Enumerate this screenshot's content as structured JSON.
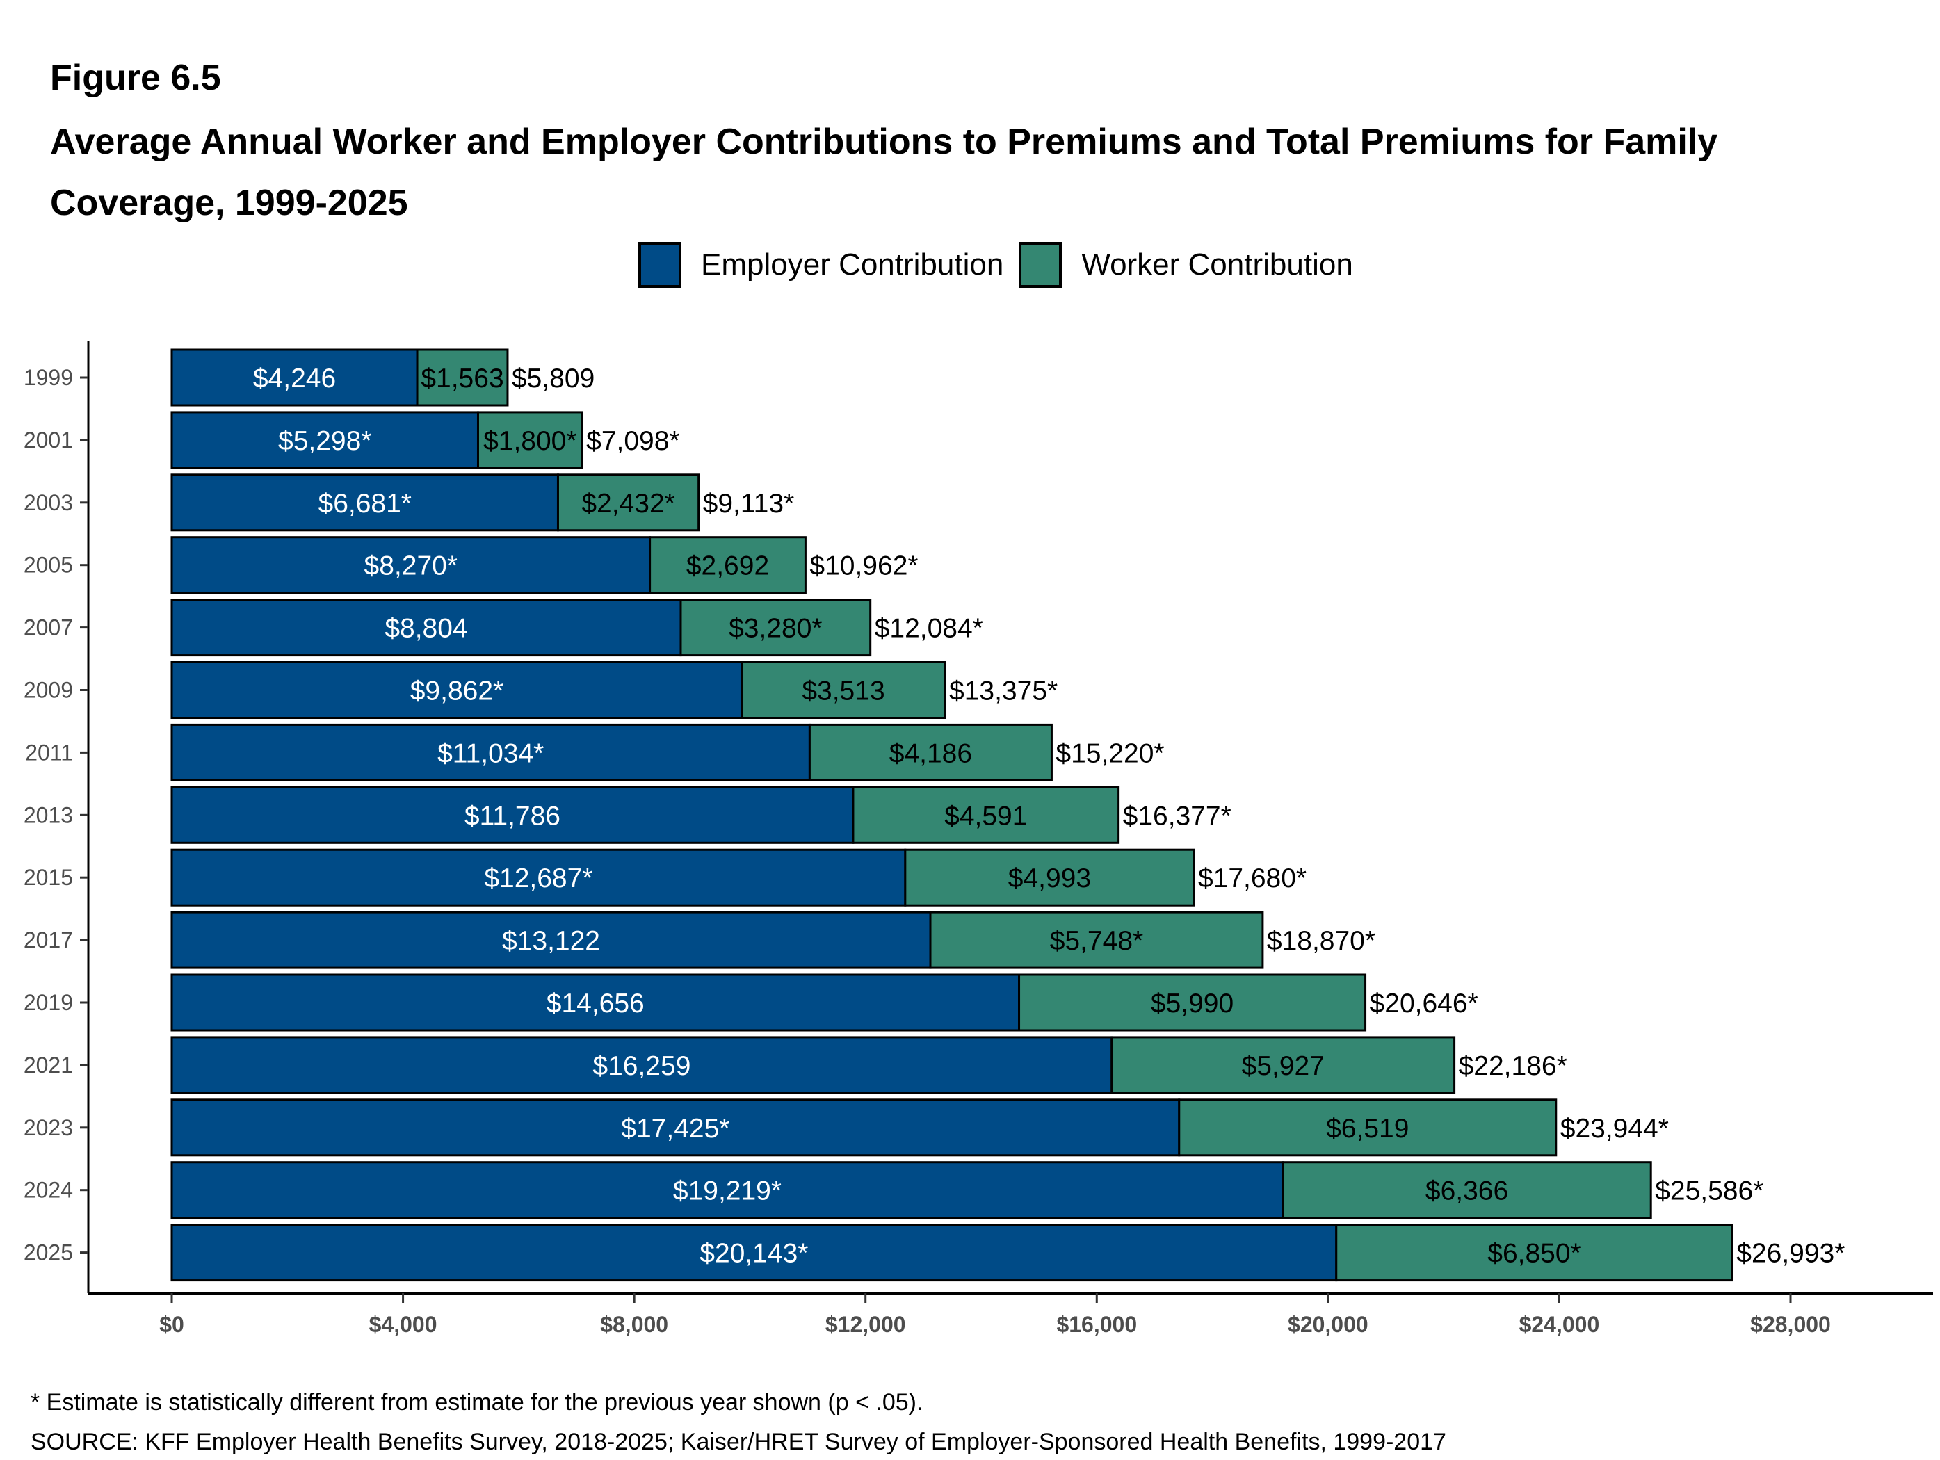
{
  "header": {
    "figure_label": "Figure 6.5",
    "title": "Average Annual Worker and Employer Contributions to Premiums and Total Premiums for Family Coverage, 1999-2025"
  },
  "legend": {
    "items": [
      {
        "label": "Employer Contribution",
        "color": "#004B87"
      },
      {
        "label": "Worker Contribution",
        "color": "#348772"
      }
    ]
  },
  "footnotes": {
    "significance": "* Estimate is statistically different from estimate for the previous year shown (p < .05).",
    "source": "SOURCE: KFF Employer Health Benefits Survey, 2018-2025; Kaiser/HRET Survey of Employer-Sponsored Health Benefits, 1999-2017"
  },
  "chart_data": {
    "type": "bar",
    "orientation": "horizontal",
    "stacked": true,
    "title": "Average Annual Worker and Employer Contributions to Premiums and Total Premiums for Family Coverage, 1999-2025",
    "xlabel": "",
    "ylabel": "",
    "xlim": [
      0,
      30000
    ],
    "x_ticks": [
      0,
      4000,
      8000,
      12000,
      16000,
      20000,
      24000,
      28000
    ],
    "x_tick_labels": [
      "$0",
      "$4,000",
      "$8,000",
      "$12,000",
      "$16,000",
      "$20,000",
      "$24,000",
      "$28,000"
    ],
    "grid": false,
    "legend_position": "top",
    "categories": [
      "1999",
      "2001",
      "2003",
      "2005",
      "2007",
      "2009",
      "2011",
      "2013",
      "2015",
      "2017",
      "2019",
      "2021",
      "2023",
      "2024",
      "2025"
    ],
    "series": [
      {
        "name": "Employer Contribution",
        "color": "#004B87",
        "label_color": "#ffffff",
        "values": [
          4246,
          5298,
          6681,
          8270,
          8804,
          9862,
          11034,
          11786,
          12687,
          13122,
          14656,
          16259,
          17425,
          19219,
          20143
        ],
        "labels": [
          "$4,246",
          "$5,298*",
          "$6,681*",
          "$8,270*",
          "$8,804",
          "$9,862*",
          "$11,034*",
          "$11,786",
          "$12,687*",
          "$13,122",
          "$14,656",
          "$16,259",
          "$17,425*",
          "$19,219*",
          "$20,143*"
        ]
      },
      {
        "name": "Worker Contribution",
        "color": "#348772",
        "label_color": "#000000",
        "values": [
          1563,
          1800,
          2432,
          2692,
          3280,
          3513,
          4186,
          4591,
          4993,
          5748,
          5990,
          5927,
          6519,
          6366,
          6850
        ],
        "labels": [
          "$1,563",
          "$1,800*",
          "$2,432*",
          "$2,692",
          "$3,280*",
          "$3,513",
          "$4,186",
          "$4,591",
          "$4,993",
          "$5,748*",
          "$5,990",
          "$5,927",
          "$6,519",
          "$6,366",
          "$6,850*"
        ]
      }
    ],
    "totals": {
      "values": [
        5809,
        7098,
        9113,
        10962,
        12084,
        13375,
        15220,
        16377,
        17680,
        18870,
        20646,
        22186,
        23944,
        25586,
        26993
      ],
      "labels": [
        "$5,809",
        "$7,098*",
        "$9,113*",
        "$10,962*",
        "$12,084*",
        "$13,375*",
        "$15,220*",
        "$16,377*",
        "$17,680*",
        "$18,870*",
        "$20,646*",
        "$22,186*",
        "$23,944*",
        "$25,586*",
        "$26,993*"
      ]
    }
  }
}
